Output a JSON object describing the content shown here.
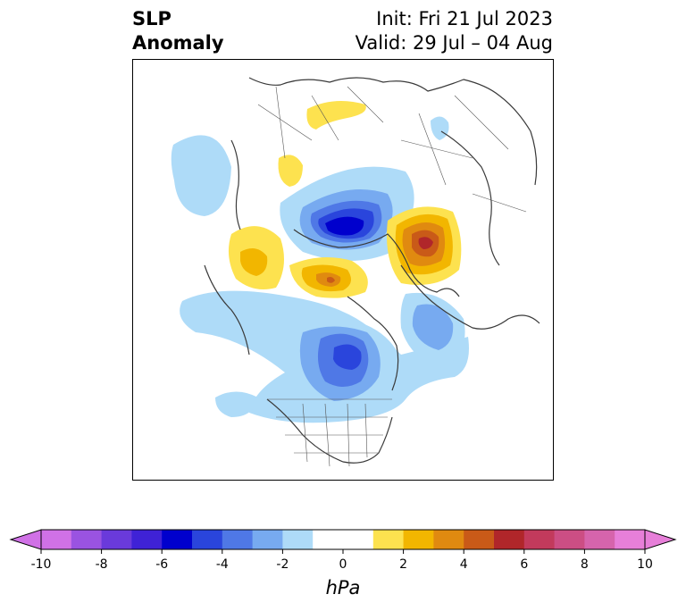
{
  "title": {
    "left_line1": "SLP",
    "left_line2": "Anomaly",
    "init": "Init: Fri 21 Jul 2023",
    "valid": "Valid: 29 Jul – 04 Aug"
  },
  "colorbar": {
    "unit": "hPa",
    "ticks": [
      "-10",
      "-8",
      "-6",
      "-4",
      "-2",
      "0",
      "2",
      "4",
      "6",
      "8",
      "10"
    ],
    "colors": [
      "#d071e6",
      "#9a53e1",
      "#6a3adb",
      "#3f22d6",
      "#0000cd",
      "#2a45dc",
      "#4f78e6",
      "#77aaf0",
      "#aedbf8",
      "#ffffff",
      "#ffffff",
      "#fde24f",
      "#f2b600",
      "#e08a10",
      "#c95a18",
      "#b0262a",
      "#c23a5c",
      "#cc4e84",
      "#d664ac",
      "#e77fd9"
    ],
    "under_color": "#d071e6",
    "over_color": "#e77fd9"
  },
  "map": {
    "projection": "north-polar-stereographic",
    "anomalies": [
      {
        "region": "Barents / Kara Sea",
        "sign": "negative",
        "peak_hPa": -6
      },
      {
        "region": "Laptev / East Siberian Sea",
        "sign": "positive",
        "peak_hPa": 6
      },
      {
        "region": "Greenland / Arctic Ocean",
        "sign": "positive",
        "peak_hPa": 4
      },
      {
        "region": "Canada / Hudson Bay",
        "sign": "negative",
        "peak_hPa": -4
      },
      {
        "region": "Scandinavia",
        "sign": "positive",
        "peak_hPa": 2
      },
      {
        "region": "North Atlantic",
        "sign": "negative",
        "peak_hPa": -1
      },
      {
        "region": "North Pacific",
        "sign": "negative",
        "peak_hPa": -3
      }
    ]
  }
}
